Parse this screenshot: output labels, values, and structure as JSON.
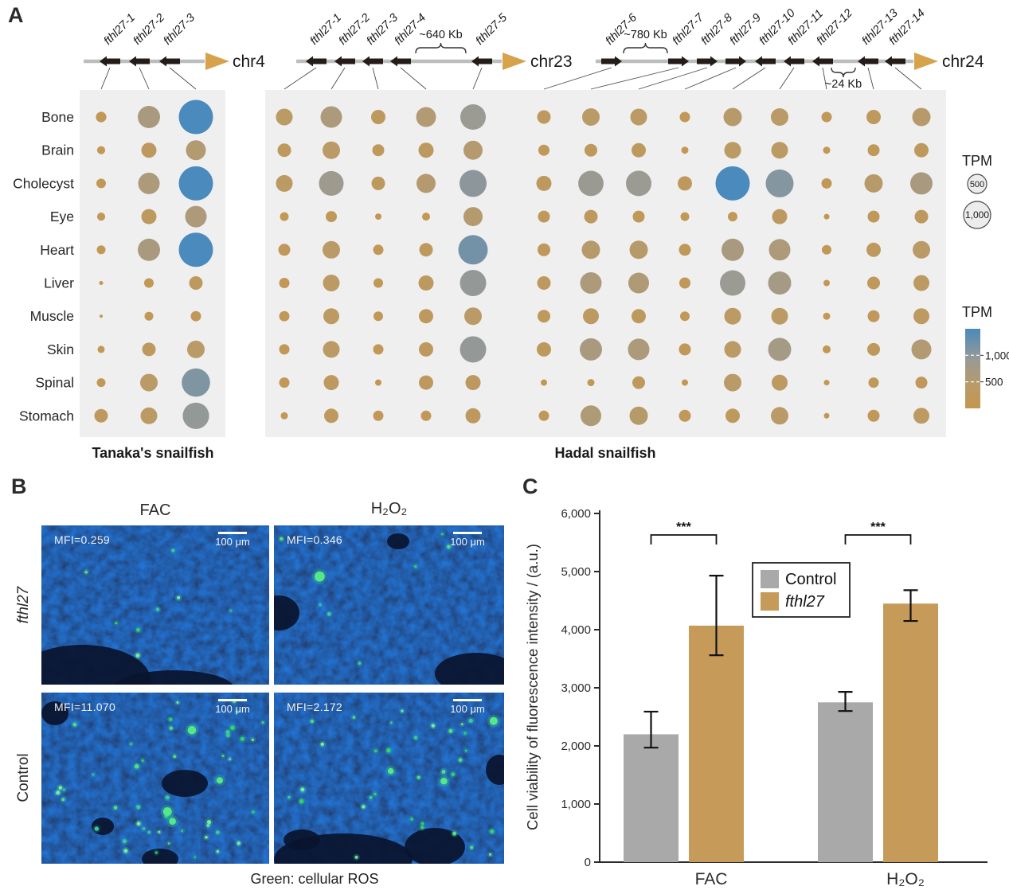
{
  "labels": {
    "panel_a": "A",
    "panel_b": "B",
    "panel_c": "C"
  },
  "chart_data": [
    {
      "id": "panel-A",
      "type": "heatmap",
      "subtype": "bubble-matrix",
      "encoding": "bubble size and color encode TPM",
      "rows": [
        "Bone",
        "Brain",
        "Cholecyst",
        "Eye",
        "Heart",
        "Liver",
        "Muscle",
        "Skin",
        "Spinal",
        "Stomach"
      ],
      "groups": [
        {
          "label": "Tanaka's snailfish",
          "columns": [
            "fthl27-1",
            "fthl27-2",
            "fthl27-3"
          ],
          "tpm": [
            [
              150,
              680,
              1600
            ],
            [
              90,
              310,
              540
            ],
            [
              125,
              630,
              1600
            ],
            [
              90,
              310,
              630
            ],
            [
              105,
              680,
              1600
            ],
            [
              22,
              125,
              250
            ],
            [
              15,
              105,
              145
            ],
            [
              70,
              250,
              420
            ],
            [
              105,
              420,
              1100
            ],
            [
              250,
              380,
              950
            ]
          ]
        },
        {
          "label": "Hadal snailfish",
          "columns": [
            "fthl27-1",
            "fthl27-2",
            "fthl27-3",
            "fthl27-4",
            "fthl27-5",
            "fthl27-6",
            "fthl27-7",
            "fthl27-8",
            "fthl27-9",
            "fthl27-10",
            "fthl27-11",
            "fthl27-12",
            "fthl27-13",
            "fthl27-14"
          ],
          "tpm": [
            [
              382,
              632,
              281,
              542,
              888,
              250,
              420,
              382,
              146,
              459,
              420,
              146,
              281,
              459
            ],
            [
              250,
              420,
              195,
              313,
              500,
              170,
              222,
              281,
              70,
              382,
              382,
              70,
              195,
              281
            ],
            [
              382,
              833,
              250,
              500,
              1000,
              313,
              880,
              888,
              281,
              1600,
              1062,
              146,
              459,
              680
            ],
            [
              105,
              170,
              55,
              87,
              500,
              195,
              250,
              195,
              105,
              125,
              313,
              42,
              195,
              250
            ],
            [
              195,
              420,
              146,
              250,
              1187,
              222,
              459,
              459,
              195,
              680,
              632,
              125,
              281,
              420
            ],
            [
              146,
              382,
              125,
              313,
              944,
              250,
              632,
              586,
              170,
              888,
              729,
              55,
              222,
              347
            ],
            [
              146,
              347,
              125,
              281,
              420,
              222,
              347,
              281,
              125,
              382,
              382,
              70,
              195,
              347
            ],
            [
              146,
              382,
              146,
              281,
              944,
              281,
              680,
              632,
              195,
              382,
              729,
              87,
              222,
              542
            ],
            [
              146,
              313,
              55,
              281,
              313,
              55,
              70,
              222,
              55,
              420,
              347,
              42,
              146,
              195
            ],
            [
              70,
              281,
              146,
              146,
              313,
              146,
              586,
              459,
              195,
              281,
              420,
              42,
              195,
              347
            ]
          ]
        }
      ],
      "chromosomes": [
        {
          "name": "chr4",
          "group": 0,
          "genes": [
            "fthl27-1",
            "fthl27-2",
            "fthl27-3"
          ],
          "strand": [
            "rev",
            "rev",
            "rev"
          ],
          "gaps": []
        },
        {
          "name": "chr23",
          "group": 1,
          "genes": [
            "fthl27-1",
            "fthl27-2",
            "fthl27-3",
            "fthl27-4",
            "fthl27-5"
          ],
          "strand": [
            "rev",
            "rev",
            "rev",
            "rev",
            "rev"
          ],
          "gaps": [
            {
              "between": [
                "fthl27-4",
                "fthl27-5"
              ],
              "label": "~640 Kb",
              "side": "above"
            }
          ]
        },
        {
          "name": "chr24",
          "group": 1,
          "genes": [
            "fthl27-6",
            "fthl27-7",
            "fthl27-8",
            "fthl27-9",
            "fthl27-10",
            "fthl27-11",
            "fthl27-12",
            "fthl27-13",
            "fthl27-14"
          ],
          "strand": [
            "fwd",
            "fwd",
            "fwd",
            "fwd",
            "rev",
            "rev",
            "rev",
            "rev",
            "rev"
          ],
          "gaps": [
            {
              "between": [
                "fthl27-6",
                "fthl27-7"
              ],
              "label": "~780 Kb",
              "side": "above"
            },
            {
              "between": [
                "fthl27-12",
                "fthl27-13"
              ],
              "label": "~24 Kb",
              "side": "below"
            }
          ]
        }
      ],
      "size_legend": {
        "title": "TPM",
        "entries": [
          "500",
          "1,000"
        ],
        "values": [
          500,
          1000
        ]
      },
      "color_legend": {
        "title": "TPM",
        "tick_labels": [
          "1,000",
          "500"
        ],
        "tick_values": [
          1000,
          500
        ],
        "stops": [
          [
            0,
            "#c49750"
          ],
          [
            400,
            "#bb9a64"
          ],
          [
            900,
            "#9a9a94"
          ],
          [
            1500,
            "#4a8abc"
          ]
        ],
        "max": 1500
      }
    },
    {
      "id": "panel-C",
      "type": "bar",
      "categories": [
        "FAC",
        "H₂O₂"
      ],
      "series": [
        {
          "name": "Control",
          "color": "#a9a9a9",
          "values": [
            2200,
            2750
          ],
          "err_low": [
            1970,
            2600
          ],
          "err_high": [
            2590,
            2930
          ]
        },
        {
          "name": "fthl27",
          "color": "#c69b59",
          "values": [
            4070,
            4450
          ],
          "err_low": [
            3560,
            4150
          ],
          "err_high": [
            4930,
            4680
          ]
        }
      ],
      "ylabel": "Cell viability of fluorescence intensity / (a.u.)",
      "ylim": [
        0,
        6000
      ],
      "ytick_labels": [
        "0",
        "1,000",
        "2,000",
        "3,000",
        "4,000",
        "5,000",
        "6,000"
      ],
      "significance": [
        "***",
        "***"
      ],
      "legend": {
        "items": [
          "Control",
          "fthl27"
        ],
        "italic": [
          false,
          true
        ],
        "position": "upper middle"
      },
      "grid": false
    }
  ],
  "panel_b": {
    "col_headers": [
      "FAC",
      "H₂O₂"
    ],
    "row_labels": [
      "fthl27",
      "Control"
    ],
    "caption": "Green: cellular ROS",
    "quadrants": [
      {
        "row": "fthl27",
        "col": "FAC",
        "mfi": "MFI=0.259",
        "scale_bar": "100 μm",
        "dots": 8,
        "big_dots": 0,
        "seed": 11,
        "blobs": [
          [
            0.18,
            0.97,
            0.3,
            0.22
          ],
          [
            0.58,
            1.03,
            0.27,
            0.12
          ]
        ]
      },
      {
        "row": "fthl27",
        "col": "H₂O₂",
        "mfi": "MFI=0.346",
        "scale_bar": "100 μm",
        "dots": 7,
        "big_dots": 1,
        "seed": 22,
        "blobs": [
          [
            0.02,
            0.55,
            0.09,
            0.11
          ],
          [
            0.88,
            0.93,
            0.18,
            0.13
          ],
          [
            0.54,
            0.1,
            0.05,
            0.05
          ]
        ]
      },
      {
        "row": "Control",
        "col": "FAC",
        "mfi": "MFI=11.070",
        "scale_bar": "100 μm",
        "dots": 46,
        "big_dots": 4,
        "seed": 33,
        "blobs": [
          [
            0.06,
            0.12,
            0.06,
            0.07
          ],
          [
            0.63,
            0.53,
            0.1,
            0.08
          ],
          [
            0.27,
            0.78,
            0.05,
            0.05
          ],
          [
            0.52,
            0.97,
            0.08,
            0.06
          ]
        ]
      },
      {
        "row": "Control",
        "col": "H₂O₂",
        "mfi": "MFI=2.172",
        "scale_bar": "100 μm",
        "dots": 32,
        "big_dots": 3,
        "seed": 44,
        "blobs": [
          [
            0.3,
            0.97,
            0.3,
            0.15
          ],
          [
            0.7,
            0.9,
            0.13,
            0.11
          ],
          [
            0.98,
            0.45,
            0.06,
            0.09
          ],
          [
            0.12,
            0.86,
            0.08,
            0.06
          ]
        ]
      }
    ]
  }
}
